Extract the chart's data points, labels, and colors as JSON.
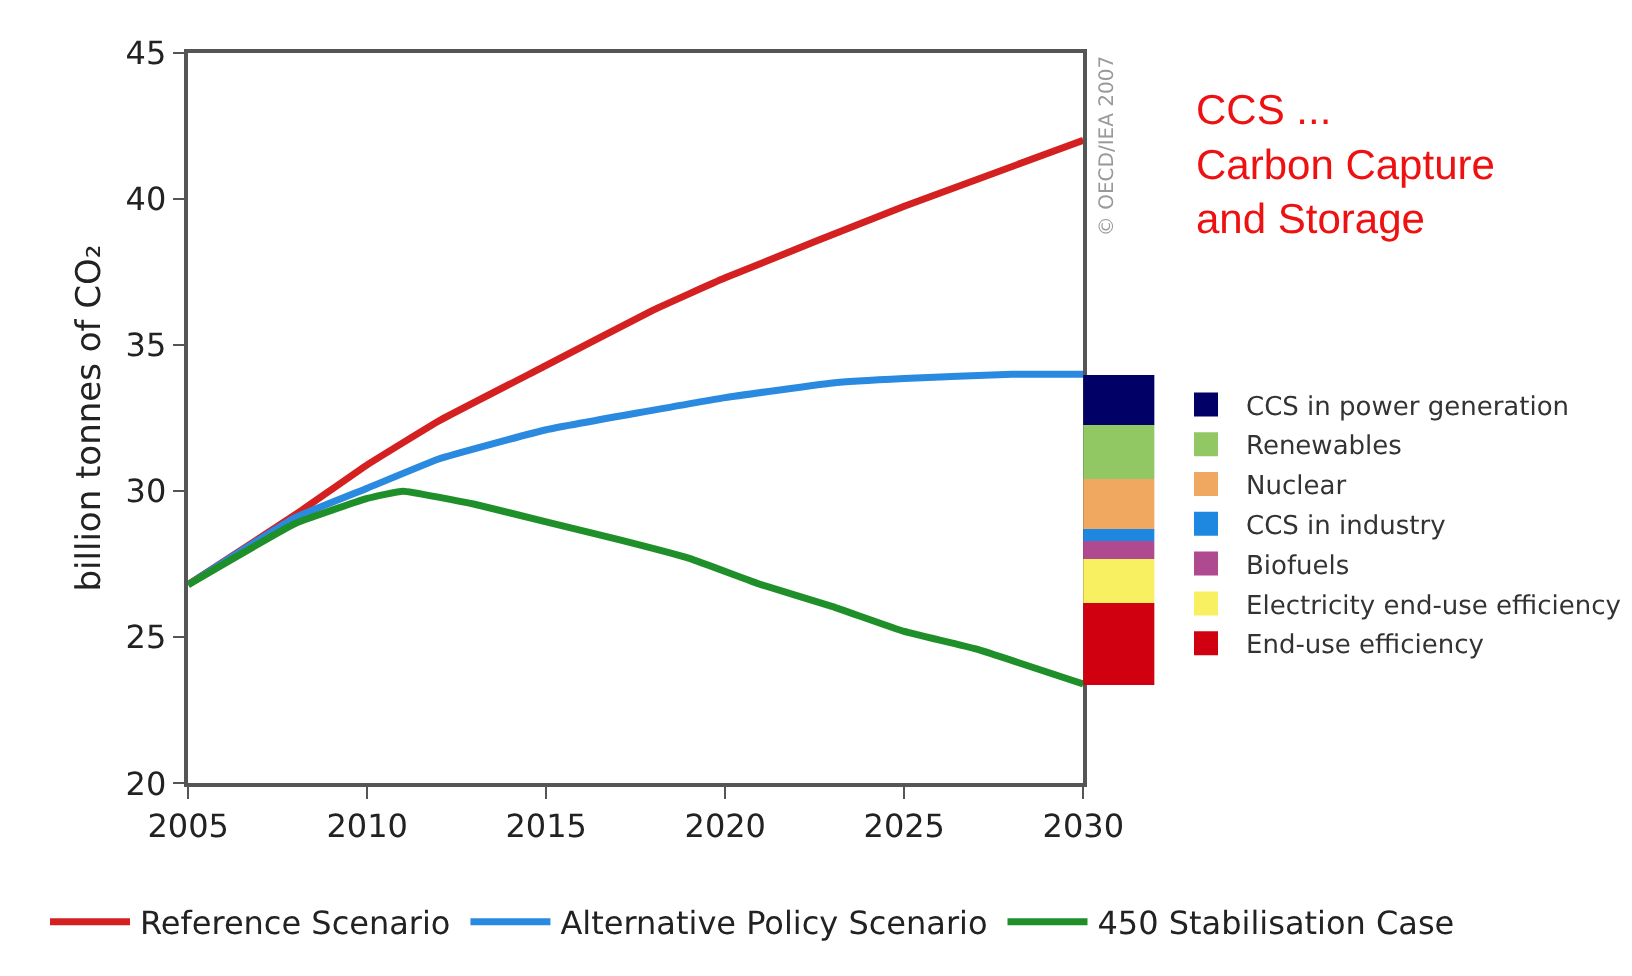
{
  "chart_data": [
    {
      "type": "line",
      "ylabel": "billion tonnes of CO₂",
      "xlim": [
        2005,
        2030
      ],
      "xticks": [
        2005,
        2010,
        2015,
        2020,
        2025,
        2030
      ],
      "ylim": [
        20,
        45
      ],
      "yticks": [
        20,
        25,
        30,
        35,
        40,
        45
      ],
      "legend": "bottom",
      "marker": "none",
      "line_style": "solid",
      "series": [
        {
          "name": "Reference Scenario",
          "color": "#d42020",
          "x": [
            2005,
            2008,
            2010,
            2012,
            2015,
            2018,
            2020,
            2025,
            2030
          ],
          "values": [
            26.8,
            29.2,
            30.9,
            32.4,
            34.3,
            36.2,
            37.3,
            39.75,
            42.0
          ]
        },
        {
          "name": "Alternative Policy Scenario",
          "color": "#2a8ae0",
          "x": [
            2005,
            2008,
            2010,
            2012,
            2015,
            2020,
            2023,
            2025,
            2028,
            2030
          ],
          "values": [
            26.8,
            29.1,
            30.1,
            31.1,
            32.1,
            33.2,
            33.7,
            33.85,
            34.0,
            34.0
          ]
        },
        {
          "name": "450 Stabilisation Case",
          "color": "#1f8f2a",
          "x": [
            2005,
            2008,
            2010,
            2011,
            2013,
            2015,
            2017,
            2019,
            2021,
            2023,
            2025,
            2027,
            2030
          ],
          "values": [
            26.8,
            28.9,
            29.75,
            30.0,
            29.55,
            28.95,
            28.35,
            27.7,
            26.8,
            26.05,
            25.2,
            24.6,
            23.4
          ]
        }
      ],
      "annotations": [
        "© OECD/IEA 2007",
        "CCS ...\nCarbon Capture\nand Storage"
      ]
    },
    {
      "type": "bar",
      "categories": [
        null
      ],
      "ylim": [
        20,
        45
      ],
      "legend": "right",
      "series": [
        {
          "name": "End-use efficiency",
          "color": "#d00010",
          "base": [
            23.4
          ],
          "values": [
            2.8
          ]
        },
        {
          "name": "Electricity end-use efficiency",
          "color": "#f8f060",
          "base": [
            26.2
          ],
          "values": [
            1.5
          ]
        },
        {
          "name": "Biofuels",
          "color": "#b04a90",
          "base": [
            27.7
          ],
          "values": [
            0.6
          ]
        },
        {
          "name": "CCS in industry",
          "color": "#1e88e0",
          "base": [
            28.3
          ],
          "values": [
            0.4
          ]
        },
        {
          "name": "Nuclear",
          "color": "#f0a860",
          "base": [
            28.7
          ],
          "values": [
            1.7
          ]
        },
        {
          "name": "Renewables",
          "color": "#92c864",
          "base": [
            30.4
          ],
          "values": [
            1.9
          ]
        },
        {
          "name": "CCS in power generation",
          "color": "#000066",
          "base": [
            32.3
          ],
          "values": [
            1.7
          ]
        }
      ]
    }
  ]
}
